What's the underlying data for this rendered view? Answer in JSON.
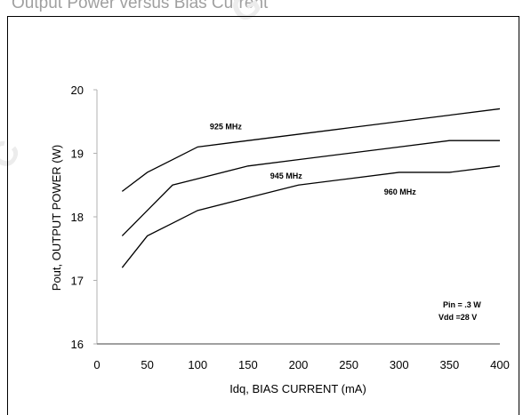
{
  "page": {
    "header": "Output Power versus Bias Current"
  },
  "chart_data": {
    "type": "line",
    "xlabel": "Idq, BIAS CURRENT  (mA)",
    "ylabel": "Pout, OUTPUT POWER  (W)",
    "xlim": [
      0,
      400
    ],
    "ylim": [
      16,
      20
    ],
    "xticks": [
      0,
      50,
      100,
      150,
      200,
      250,
      300,
      350,
      400
    ],
    "yticks": [
      16,
      17,
      18,
      19,
      20
    ],
    "grid": false,
    "series": [
      {
        "name": "925 MHz",
        "x": [
          25,
          50,
          75,
          100,
          150,
          200,
          250,
          300,
          350,
          400
        ],
        "y": [
          18.4,
          18.7,
          18.9,
          19.1,
          19.2,
          19.3,
          19.4,
          19.5,
          19.6,
          19.7
        ]
      },
      {
        "name": "945 MHz",
        "x": [
          25,
          50,
          75,
          100,
          150,
          200,
          250,
          300,
          350,
          400
        ],
        "y": [
          17.7,
          18.1,
          18.5,
          18.6,
          18.8,
          18.9,
          19.0,
          19.1,
          19.2,
          19.2
        ]
      },
      {
        "name": "960 MHz",
        "x": [
          25,
          50,
          75,
          100,
          150,
          200,
          250,
          300,
          350,
          400
        ],
        "y": [
          17.2,
          17.7,
          17.9,
          18.1,
          18.3,
          18.5,
          18.6,
          18.7,
          18.7,
          18.8
        ]
      }
    ],
    "annotations": [
      "Pin = .3 W",
      "Vdd =28 V"
    ]
  }
}
